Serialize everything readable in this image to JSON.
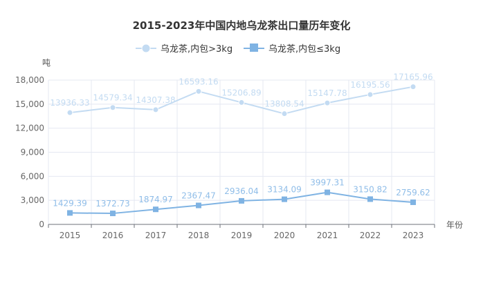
{
  "chart_data": {
    "type": "line",
    "title": "2015-2023年中国内地乌龙茶出口量历年变化",
    "xlabel": "年份",
    "ylabel": "吨",
    "x": [
      "2015",
      "2016",
      "2017",
      "2018",
      "2019",
      "2020",
      "2021",
      "2022",
      "2023"
    ],
    "ylim": [
      0,
      18000
    ],
    "yticks": [
      0,
      3000,
      6000,
      9000,
      12000,
      15000,
      18000
    ],
    "ytick_labels": [
      "0",
      "3,000",
      "6,000",
      "9,000",
      "12,000",
      "15,000",
      "18,000"
    ],
    "grid": true,
    "legend_position": "top-center",
    "series": [
      {
        "name": "乌龙茶,内包>3kg",
        "marker": "circle",
        "color": "#c3dbf2",
        "values": [
          13936.33,
          14579.34,
          14307.38,
          16593.16,
          15206.89,
          13808.54,
          15147.78,
          16195.56,
          17165.96
        ],
        "labels": [
          "13936.33",
          "14579.34",
          "14307.38",
          "16593.16",
          "15206.89",
          "13808.54",
          "15147.78",
          "16195.56",
          "17165.96"
        ]
      },
      {
        "name": "乌龙茶,内包≤3kg",
        "marker": "square",
        "color": "#7fb3e3",
        "values": [
          1429.39,
          1372.73,
          1874.97,
          2367.47,
          2936.04,
          3134.09,
          3997.31,
          3150.82,
          2759.62
        ],
        "labels": [
          "1429.39",
          "1372.73",
          "1874.97",
          "2367.47",
          "2936.04",
          "3134.09",
          "3997.31",
          "3150.82",
          "2759.62"
        ]
      }
    ]
  },
  "colors": {
    "grid": "#e4e8f2",
    "axis": "#6e7079",
    "series1_label": "#c3dbf2",
    "series2_label": "#8fbde8"
  }
}
